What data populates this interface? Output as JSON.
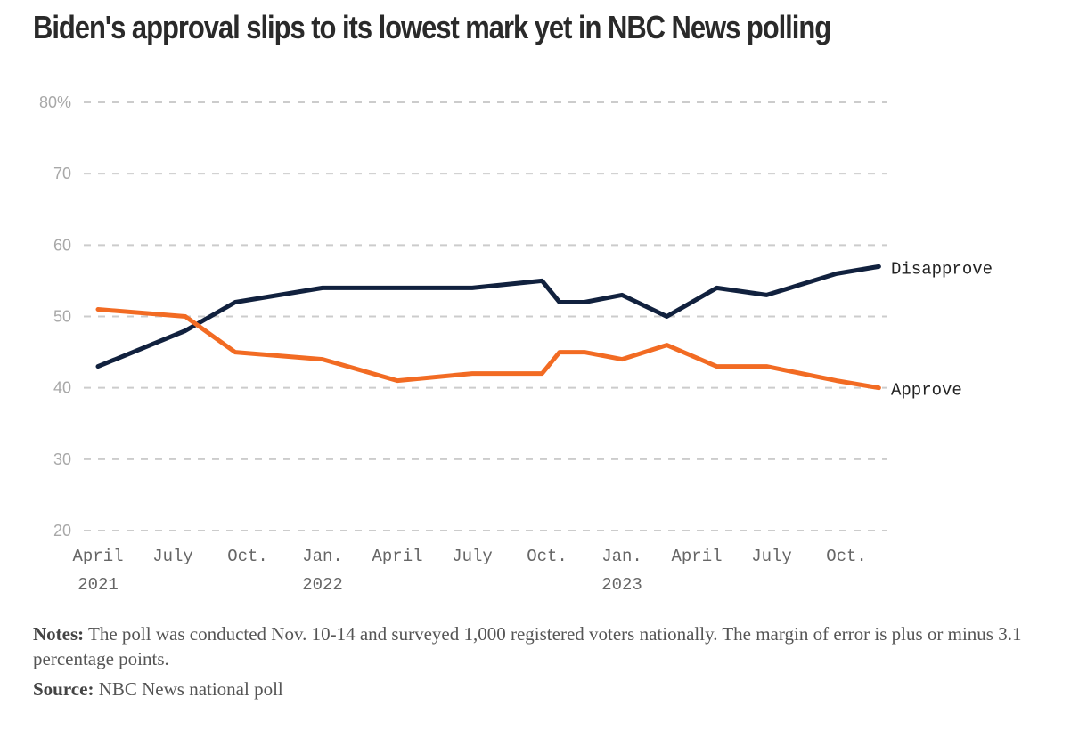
{
  "title": "Biden's approval slips to its lowest mark yet in NBC News polling",
  "notes": {
    "notes_label": "Notes:",
    "notes_text": " The poll was conducted Nov. 10-14 and surveyed 1,000 registered voters nationally. The margin of error is plus or minus 3.1 percentage points.",
    "source_label": "Source:",
    "source_text": " NBC News national poll"
  },
  "chart_data": {
    "type": "line",
    "title": "Biden's approval slips to its lowest mark yet in NBC News polling",
    "xlabel": "",
    "ylabel": "",
    "ylim": [
      20,
      80
    ],
    "grid": true,
    "legend": "inline-right",
    "y_ticks": [
      {
        "value": 80,
        "label": "80%"
      },
      {
        "value": 70,
        "label": "70"
      },
      {
        "value": 60,
        "label": "60"
      },
      {
        "value": 50,
        "label": "50"
      },
      {
        "value": 40,
        "label": "40"
      },
      {
        "value": 30,
        "label": "30"
      },
      {
        "value": 20,
        "label": "20"
      }
    ],
    "x_ticks": [
      {
        "month": 0,
        "label": "April",
        "year": "2021"
      },
      {
        "month": 3,
        "label": "July",
        "year": ""
      },
      {
        "month": 6,
        "label": "Oct.",
        "year": ""
      },
      {
        "month": 9,
        "label": "Jan.",
        "year": "2022"
      },
      {
        "month": 12,
        "label": "April",
        "year": ""
      },
      {
        "month": 15,
        "label": "July",
        "year": ""
      },
      {
        "month": 18,
        "label": "Oct.",
        "year": ""
      },
      {
        "month": 21,
        "label": "Jan.",
        "year": "2023"
      },
      {
        "month": 24,
        "label": "April",
        "year": ""
      },
      {
        "month": 27,
        "label": "July",
        "year": ""
      },
      {
        "month": 30,
        "label": "Oct.",
        "year": ""
      }
    ],
    "x_months": [
      0,
      3.5,
      5.5,
      9,
      12,
      15,
      17.8,
      18.5,
      19.5,
      21,
      22.8,
      24.8,
      26.8,
      29.6,
      31.3
    ],
    "series": [
      {
        "name": "Disapprove",
        "color": "#11213e",
        "values": [
          43,
          48,
          52,
          54,
          54,
          54,
          55,
          52,
          52,
          53,
          50,
          54,
          53,
          56,
          57
        ]
      },
      {
        "name": "Approve",
        "color": "#f26b23",
        "values": [
          51,
          50,
          45,
          44,
          41,
          42,
          42,
          45,
          45,
          44,
          46,
          43,
          43,
          41,
          40
        ]
      }
    ]
  }
}
